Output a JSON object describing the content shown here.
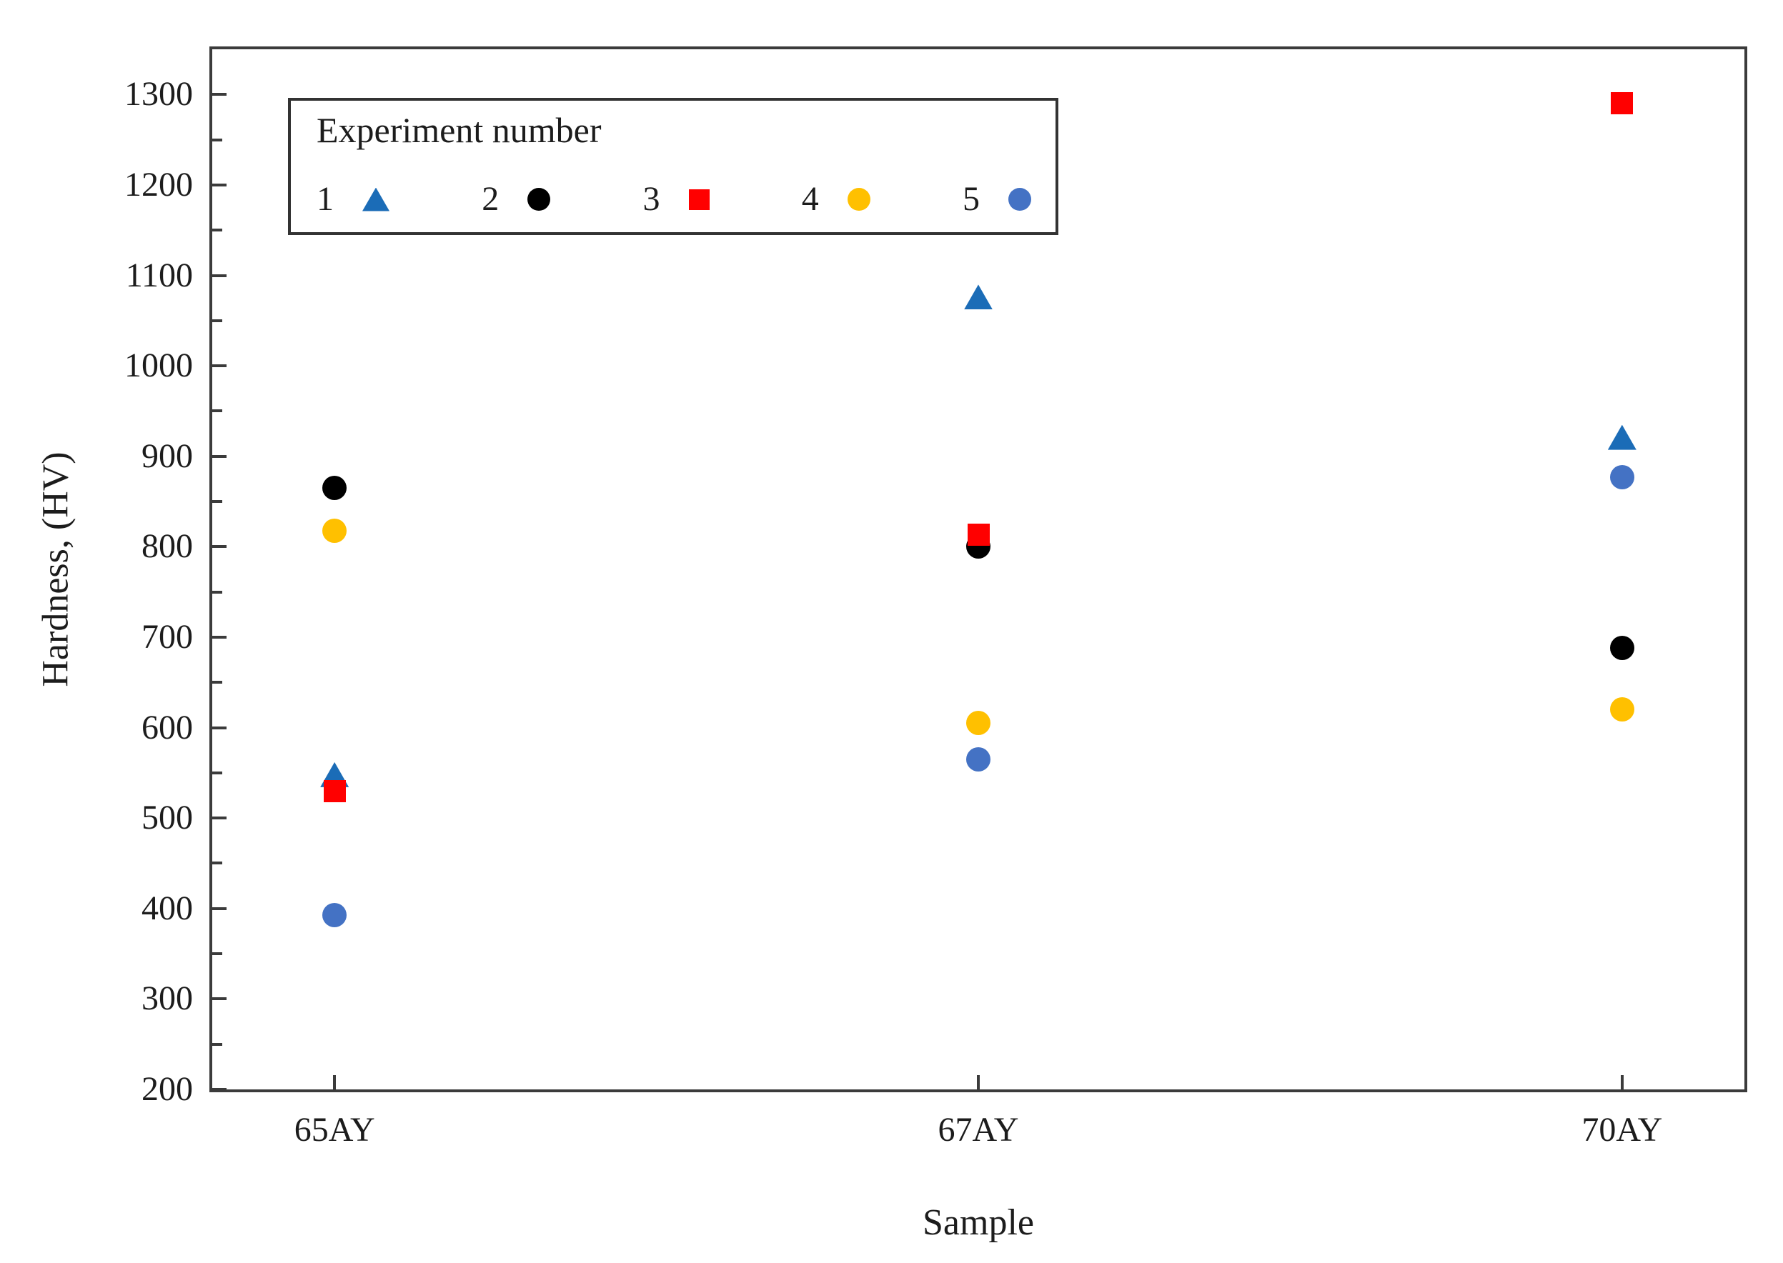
{
  "chart_data": {
    "type": "scatter",
    "title": "",
    "xlabel": "Sample",
    "ylabel": "Hardness, (HV)",
    "categories": [
      "65AY",
      "67AY",
      "70AY"
    ],
    "legend_title": "Experiment number",
    "legend_position": "top-left-inside",
    "grid": false,
    "ylim": [
      200,
      1350
    ],
    "xlim": [
      0.81,
      3.19
    ],
    "yticks": [
      200,
      300,
      400,
      500,
      600,
      700,
      800,
      900,
      1000,
      1100,
      1200,
      1300
    ],
    "ytick_minor_step": 50,
    "axis_color": "#3b3b3b",
    "series": [
      {
        "name": "1",
        "marker": "triangle",
        "color": "#1b6cb7",
        "values": [
          548,
          1076,
          921
        ]
      },
      {
        "name": "2",
        "marker": "circle",
        "color": "#000000",
        "values": [
          865,
          800,
          688
        ]
      },
      {
        "name": "3",
        "marker": "square",
        "color": "#ff0000",
        "values": [
          530,
          813,
          1290
        ]
      },
      {
        "name": "4",
        "marker": "circle",
        "color": "#ffc000",
        "values": [
          818,
          605,
          620
        ]
      },
      {
        "name": "5",
        "marker": "circle",
        "color": "#4472c4",
        "values": [
          393,
          565,
          877
        ]
      }
    ]
  }
}
